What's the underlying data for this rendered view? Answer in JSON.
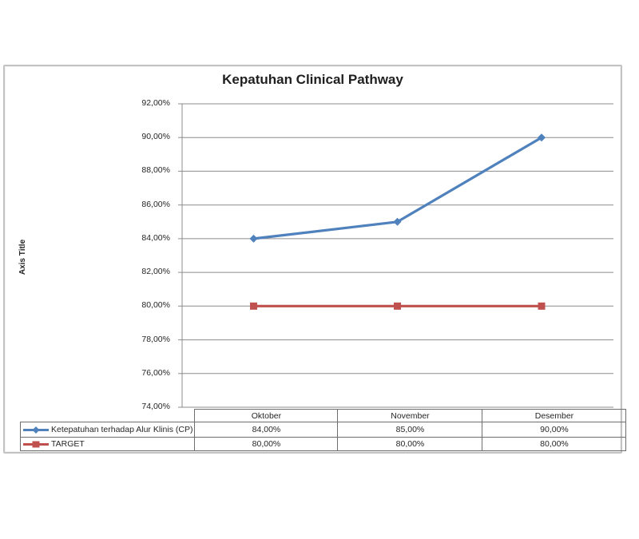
{
  "window": {
    "background": "#ffffff"
  },
  "chart": {
    "title": "Kepatuhan Clinical Pathway",
    "y_axis_title": "Axis Title",
    "colors": {
      "series_cp": "#4F81BD",
      "series_target": "#C0504D",
      "gridline": "#8c8c8c",
      "axis_line": "#8c8c8c",
      "table_border": "#6e6e6e",
      "frame_border": "#c2c2c2",
      "text": "#262626"
    }
  },
  "chart_data": {
    "type": "line",
    "title": "Kepatuhan Clinical Pathway",
    "ylabel": "Axis Title",
    "xlabel": "",
    "categories": [
      "Oktober",
      "November",
      "Desember"
    ],
    "series": [
      {
        "name": "Ketepatuhan terhadap Alur Klinis (CP)",
        "values": [
          84,
          85,
          90
        ],
        "display_values": [
          "84,00%",
          "85,00%",
          "90,00%"
        ],
        "color": "#4F81BD",
        "marker": "diamond"
      },
      {
        "name": "TARGET",
        "values": [
          80,
          80,
          80
        ],
        "display_values": [
          "80,00%",
          "80,00%",
          "80,00%"
        ],
        "color": "#C0504D",
        "marker": "square"
      }
    ],
    "ylim": [
      74,
      92
    ],
    "ytick_step": 2,
    "ytick_labels": [
      "92,00%",
      "90,00%",
      "88,00%",
      "86,00%",
      "84,00%",
      "82,00%",
      "80,00%",
      "78,00%",
      "76,00%",
      "74,00%"
    ],
    "grid": true,
    "legend_position": "data-table-keys"
  }
}
